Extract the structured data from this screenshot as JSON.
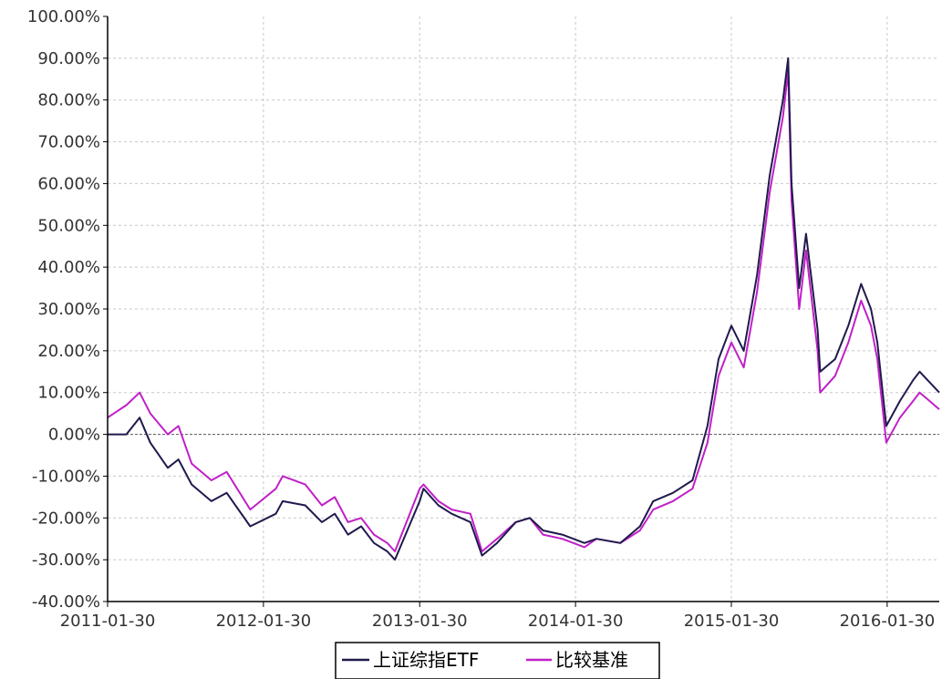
{
  "chart_data": {
    "type": "line",
    "title": "",
    "xlabel": "",
    "ylabel": "",
    "xlim": [
      "2011-01-30",
      "2016-05-31"
    ],
    "ylim": [
      -40,
      100
    ],
    "y_tick_labels": [
      "100.00%",
      "90.00%",
      "80.00%",
      "70.00%",
      "60.00%",
      "50.00%",
      "40.00%",
      "30.00%",
      "20.00%",
      "10.00%",
      "0.00%",
      "-10.00%",
      "-20.00%",
      "-30.00%",
      "-40.00%"
    ],
    "x_tick_labels": [
      "2011-01-30",
      "2012-01-30",
      "2013-01-30",
      "2014-01-30",
      "2015-01-30",
      "2016-01-30"
    ],
    "grid": true,
    "legend_position": "bottom",
    "x": [
      "2011-01-30",
      "2011-03-15",
      "2011-04-15",
      "2011-05-10",
      "2011-06-20",
      "2011-07-15",
      "2011-08-15",
      "2011-09-30",
      "2011-11-05",
      "2011-12-30",
      "2012-02-28",
      "2012-03-15",
      "2012-05-07",
      "2012-06-15",
      "2012-07-15",
      "2012-08-15",
      "2012-09-15",
      "2012-10-15",
      "2012-11-15",
      "2012-12-03",
      "2013-01-30",
      "2013-02-08",
      "2013-03-15",
      "2013-04-15",
      "2013-05-29",
      "2013-06-25",
      "2013-07-30",
      "2013-09-12",
      "2013-10-15",
      "2013-11-15",
      "2013-12-30",
      "2014-02-20",
      "2014-03-20",
      "2014-05-15",
      "2014-06-30",
      "2014-07-31",
      "2014-09-15",
      "2014-10-31",
      "2014-12-05",
      "2014-12-31",
      "2015-01-30",
      "2015-02-28",
      "2015-03-31",
      "2015-04-30",
      "2015-05-31",
      "2015-06-12",
      "2015-06-20",
      "2015-07-08",
      "2015-07-24",
      "2015-08-20",
      "2015-08-26",
      "2015-09-30",
      "2015-10-31",
      "2015-11-30",
      "2015-12-23",
      "2016-01-07",
      "2016-01-28",
      "2016-02-29",
      "2016-03-31",
      "2016-04-15",
      "2016-05-31"
    ],
    "series": [
      {
        "name": "上证综指ETF",
        "color": "#1f1a4d",
        "values": [
          0,
          0,
          4,
          -2,
          -8,
          -6,
          -12,
          -16,
          -14,
          -22,
          -19,
          -16,
          -17,
          -21,
          -19,
          -24,
          -22,
          -26,
          -28,
          -30,
          -16,
          -13,
          -17,
          -19,
          -21,
          -29,
          -26,
          -21,
          -20,
          -23,
          -24,
          -26,
          -25,
          -26,
          -22,
          -16,
          -14,
          -11,
          2,
          18,
          26,
          20,
          38,
          62,
          80,
          90,
          60,
          35,
          48,
          25,
          15,
          18,
          26,
          36,
          30,
          22,
          2,
          8,
          13,
          15,
          10
        ]
      },
      {
        "name": "比较基准",
        "color": "#c020c8",
        "values": [
          4,
          7,
          10,
          5,
          0,
          2,
          -7,
          -11,
          -9,
          -18,
          -13,
          -10,
          -12,
          -17,
          -15,
          -21,
          -20,
          -24,
          -26,
          -28,
          -13,
          -12,
          -16,
          -18,
          -19,
          -28,
          -25,
          -21,
          -20,
          -24,
          -25,
          -27,
          -25,
          -26,
          -23,
          -18,
          -16,
          -13,
          -2,
          14,
          22,
          16,
          34,
          58,
          76,
          87,
          56,
          30,
          44,
          20,
          10,
          14,
          22,
          32,
          26,
          18,
          -2,
          4,
          8,
          10,
          6
        ]
      }
    ]
  }
}
